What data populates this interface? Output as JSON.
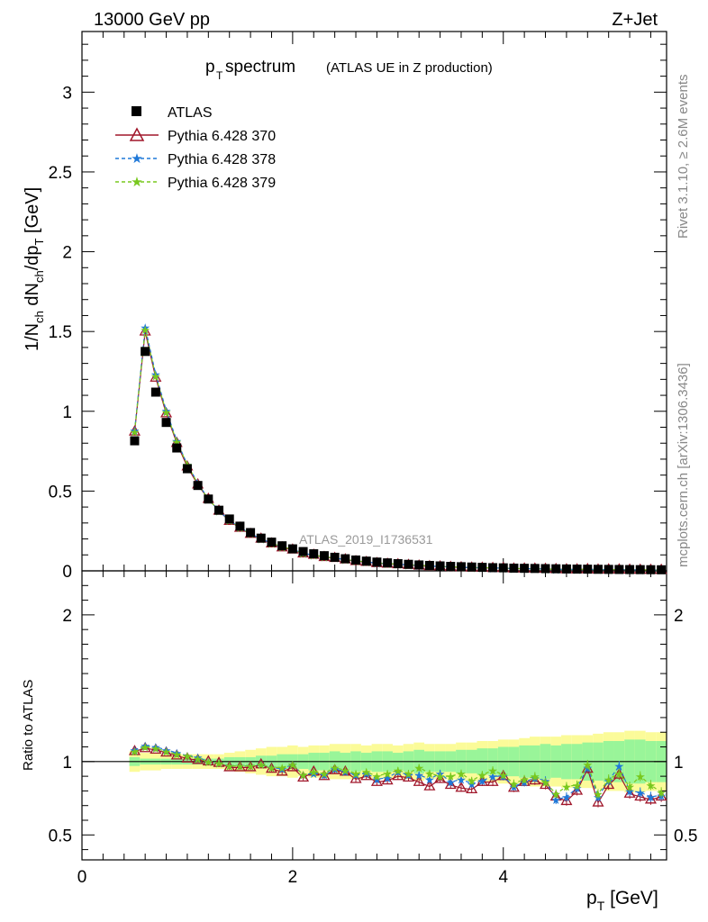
{
  "header": {
    "left": "13000 GeV pp",
    "right": "Z+Jet"
  },
  "title": {
    "main": "p",
    "main_sub": "T",
    "main_rest": " spectrum",
    "note": "(ATLAS UE in Z production)"
  },
  "side_labels": {
    "rivet": "Rivet 3.1.10, ≥ 2.6M events",
    "mcplots": "mcplots.cern.ch [arXiv:1306.3436]"
  },
  "watermark": "ATLAS_2019_I1736531",
  "axes": {
    "ylabel_top": "1/N_ch dN_ch/dp_T [GeV]",
    "ylabel_bottom": "Ratio to ATLAS",
    "xlabel": "p_T [GeV]",
    "top_yticks": [
      "0",
      "0.5",
      "1",
      "1.5",
      "2",
      "2.5",
      "3"
    ],
    "bottom_yticks": [
      "0.5",
      "1",
      "2"
    ],
    "xticks": [
      "0",
      "2",
      "4"
    ]
  },
  "legend": {
    "atlas": "ATLAS",
    "s370": "Pythia 6.428 370",
    "s378": "Pythia 6.428 378",
    "s379": "Pythia 6.428 379"
  },
  "colors": {
    "atlas": "#000000",
    "s370": "#a0162a",
    "s378": "#1f78d8",
    "s379": "#78c81e",
    "band_inner": "#99f599",
    "band_outer": "#fbfb99"
  },
  "chart_data": {
    "type": "scatter",
    "xlim": [
      0,
      5.55
    ],
    "top_ylim": [
      0,
      3.38
    ],
    "ratio_ylim": [
      0.33,
      2.3
    ],
    "x": [
      0.5,
      0.6,
      0.7,
      0.8,
      0.9,
      1.0,
      1.1,
      1.2,
      1.3,
      1.4,
      1.5,
      1.6,
      1.7,
      1.8,
      1.9,
      2.0,
      2.1,
      2.2,
      2.3,
      2.4,
      2.5,
      2.6,
      2.7,
      2.8,
      2.9,
      3.0,
      3.1,
      3.2,
      3.3,
      3.4,
      3.5,
      3.6,
      3.7,
      3.8,
      3.9,
      4.0,
      4.1,
      4.2,
      4.3,
      4.4,
      4.5,
      4.6,
      4.7,
      4.8,
      4.9,
      5.0,
      5.1,
      5.2,
      5.3,
      5.4,
      5.5
    ],
    "atlas": [
      0.815,
      1.375,
      1.12,
      0.93,
      0.77,
      0.64,
      0.535,
      0.45,
      0.38,
      0.325,
      0.28,
      0.24,
      0.205,
      0.18,
      0.157,
      0.138,
      0.121,
      0.107,
      0.095,
      0.085,
      0.076,
      0.068,
      0.061,
      0.055,
      0.05,
      0.045,
      0.041,
      0.037,
      0.034,
      0.031,
      0.028,
      0.026,
      0.024,
      0.022,
      0.02,
      0.019,
      0.017,
      0.016,
      0.015,
      0.014,
      0.013,
      0.012,
      0.011,
      0.0105,
      0.0098,
      0.0092,
      0.0087,
      0.0082,
      0.0077,
      0.0072,
      0.0068
    ],
    "series": [
      {
        "name": "Pythia 6.428 370",
        "ratio": [
          1.07,
          1.09,
          1.08,
          1.06,
          1.04,
          1.02,
          1.01,
          1.0,
          0.99,
          0.96,
          0.96,
          0.96,
          0.98,
          0.95,
          0.93,
          0.96,
          0.89,
          0.93,
          0.9,
          0.94,
          0.93,
          0.88,
          0.9,
          0.86,
          0.87,
          0.9,
          0.89,
          0.86,
          0.83,
          0.88,
          0.84,
          0.82,
          0.81,
          0.86,
          0.86,
          0.9,
          0.82,
          0.86,
          0.87,
          0.84,
          0.76,
          0.73,
          0.8,
          0.95,
          0.72,
          0.84,
          0.91,
          0.78,
          0.76,
          0.74,
          0.76
        ]
      },
      {
        "name": "Pythia 6.428 378",
        "ratio": [
          1.08,
          1.11,
          1.1,
          1.08,
          1.06,
          1.04,
          1.03,
          1.0,
          0.99,
          0.97,
          0.97,
          0.97,
          0.98,
          0.96,
          0.95,
          0.98,
          0.91,
          0.92,
          0.91,
          0.95,
          0.93,
          0.91,
          0.92,
          0.88,
          0.89,
          0.93,
          0.91,
          0.91,
          0.88,
          0.92,
          0.86,
          0.88,
          0.85,
          0.87,
          0.9,
          0.9,
          0.83,
          0.86,
          0.89,
          0.87,
          0.74,
          0.76,
          0.82,
          0.96,
          0.76,
          0.87,
          0.97,
          0.8,
          0.79,
          0.76,
          0.77
        ]
      },
      {
        "name": "Pythia 6.428 379",
        "ratio": [
          1.07,
          1.1,
          1.09,
          1.07,
          1.05,
          1.04,
          1.02,
          1.0,
          0.99,
          0.97,
          0.97,
          0.97,
          0.98,
          0.96,
          0.96,
          0.98,
          0.91,
          0.93,
          0.92,
          0.96,
          0.94,
          0.92,
          0.93,
          0.9,
          0.92,
          0.94,
          0.92,
          0.96,
          0.92,
          0.9,
          0.9,
          0.92,
          0.87,
          0.91,
          0.94,
          0.91,
          0.85,
          0.88,
          0.9,
          0.86,
          0.78,
          0.83,
          0.84,
          0.98,
          0.78,
          0.88,
          0.92,
          0.83,
          0.9,
          0.84,
          0.79
        ]
      }
    ],
    "band_outer": [
      0.07,
      0.06,
      0.06,
      0.05,
      0.05,
      0.05,
      0.05,
      0.05,
      0.05,
      0.06,
      0.07,
      0.08,
      0.09,
      0.1,
      0.1,
      0.11,
      0.1,
      0.11,
      0.11,
      0.12,
      0.12,
      0.12,
      0.11,
      0.12,
      0.12,
      0.11,
      0.12,
      0.13,
      0.12,
      0.12,
      0.12,
      0.13,
      0.13,
      0.14,
      0.14,
      0.15,
      0.15,
      0.16,
      0.17,
      0.17,
      0.17,
      0.18,
      0.18,
      0.18,
      0.19,
      0.2,
      0.2,
      0.21,
      0.21,
      0.2,
      0.2
    ],
    "band_inner": [
      0.03,
      0.02,
      0.02,
      0.02,
      0.02,
      0.02,
      0.02,
      0.02,
      0.02,
      0.03,
      0.03,
      0.03,
      0.04,
      0.04,
      0.05,
      0.05,
      0.05,
      0.06,
      0.06,
      0.07,
      0.06,
      0.07,
      0.06,
      0.07,
      0.07,
      0.06,
      0.07,
      0.08,
      0.07,
      0.07,
      0.07,
      0.08,
      0.08,
      0.09,
      0.09,
      0.1,
      0.1,
      0.11,
      0.11,
      0.12,
      0.11,
      0.12,
      0.12,
      0.13,
      0.13,
      0.14,
      0.14,
      0.15,
      0.15,
      0.14,
      0.14
    ]
  }
}
